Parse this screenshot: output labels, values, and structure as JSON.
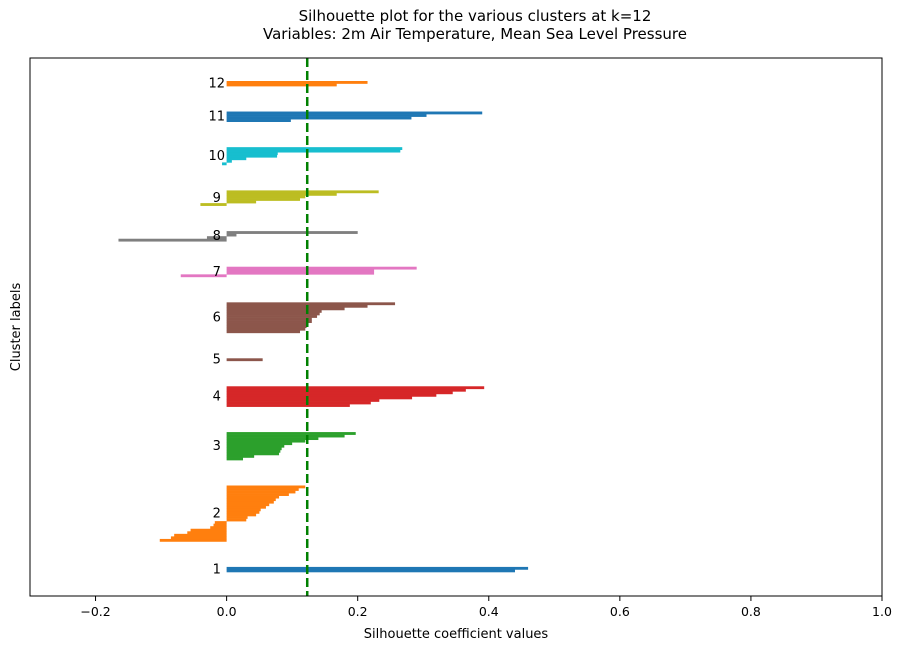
{
  "chart_data": {
    "type": "bar",
    "orientation": "horizontal",
    "title_lines": [
      "Silhouette plot for the various clusters at k=12",
      "Variables: 2m Air Temperature, Mean Sea Level Pressure"
    ],
    "xlabel": "Silhouette coefficient values",
    "ylabel": "Cluster labels",
    "xlim": [
      -0.3,
      1.0
    ],
    "xticks": [
      -0.2,
      0.0,
      0.2,
      0.4,
      0.6,
      0.8,
      1.0
    ],
    "xtick_labels": [
      "−0.2",
      "0.0",
      "0.2",
      "0.4",
      "0.6",
      "0.8",
      "1.0"
    ],
    "grid": false,
    "average_silhouette": 0.123,
    "average_line_color": "#008000",
    "clusters": [
      {
        "label": "1",
        "color": "#1f77b4",
        "values": [
          0.46,
          0.44
        ]
      },
      {
        "label": "2",
        "color": "#ff7f0e",
        "values": [
          0.12,
          0.11,
          0.105,
          0.095,
          0.08,
          0.075,
          0.072,
          0.065,
          0.06,
          0.052,
          0.05,
          0.045,
          0.032,
          0.03,
          -0.018,
          -0.02,
          -0.025,
          -0.055,
          -0.06,
          -0.08,
          -0.085,
          -0.102
        ]
      },
      {
        "label": "3",
        "color": "#2ca02c",
        "values": [
          0.197,
          0.18,
          0.14,
          0.12,
          0.1,
          0.088,
          0.084,
          0.082,
          0.08,
          0.042,
          0.025
        ]
      },
      {
        "label": "4",
        "color": "#d62728",
        "values": [
          0.393,
          0.365,
          0.345,
          0.32,
          0.283,
          0.233,
          0.22,
          0.188
        ]
      },
      {
        "label": "5",
        "color": "#8c564b",
        "values": [
          0.055
        ]
      },
      {
        "label": "6",
        "color": "#8c564b",
        "values": [
          0.257,
          0.215,
          0.18,
          0.145,
          0.142,
          0.138,
          0.13,
          0.13,
          0.125,
          0.122,
          0.12,
          0.112
        ]
      },
      {
        "label": "7",
        "color": "#e377c2",
        "values": [
          0.29,
          0.225,
          0.225,
          -0.07
        ]
      },
      {
        "label": "8",
        "color": "#7f7f7f",
        "values": [
          0.2,
          0.015,
          -0.03,
          -0.165
        ]
      },
      {
        "label": "9",
        "color": "#bcbd22",
        "values": [
          0.232,
          0.168,
          0.12,
          0.112,
          0.045,
          -0.04
        ]
      },
      {
        "label": "10",
        "color": "#17becf",
        "values": [
          0.268,
          0.265,
          0.078,
          0.077,
          0.03,
          0.008,
          -0.007
        ]
      },
      {
        "label": "11",
        "color": "#1f77b4",
        "values": [
          0.39,
          0.305,
          0.282,
          0.098
        ]
      },
      {
        "label": "12",
        "color": "#ff7f0e",
        "values": [
          0.215,
          0.168
        ]
      }
    ]
  }
}
